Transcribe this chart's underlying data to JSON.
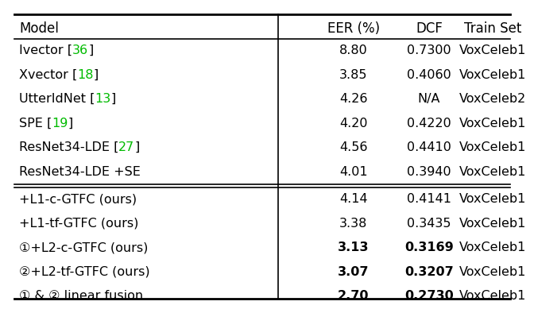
{
  "columns": [
    "Model",
    "EER (%)",
    "DCF",
    "Train Set"
  ],
  "rows_group1": [
    {
      "model_plain": "Ivector [",
      "model_ref": "36",
      "model_suffix": "]",
      "eer": "8.80",
      "dcf": "0.7300",
      "train": "VoxCeleb1",
      "eer_bold": false,
      "dcf_bold": false
    },
    {
      "model_plain": "Xvector [",
      "model_ref": "18",
      "model_suffix": "]",
      "eer": "3.85",
      "dcf": "0.4060",
      "train": "VoxCeleb1",
      "eer_bold": false,
      "dcf_bold": false
    },
    {
      "model_plain": "UtterIdNet [",
      "model_ref": "13",
      "model_suffix": "]",
      "eer": "4.26",
      "dcf": "N/A",
      "train": "VoxCeleb2",
      "eer_bold": false,
      "dcf_bold": false
    },
    {
      "model_plain": "SPE [",
      "model_ref": "19",
      "model_suffix": "]",
      "eer": "4.20",
      "dcf": "0.4220",
      "train": "VoxCeleb1",
      "eer_bold": false,
      "dcf_bold": false
    },
    {
      "model_plain": "ResNet34-LDE [",
      "model_ref": "27",
      "model_suffix": "]",
      "eer": "4.56",
      "dcf": "0.4410",
      "train": "VoxCeleb1",
      "eer_bold": false,
      "dcf_bold": false
    },
    {
      "model_plain": "ResNet34-LDE +SE",
      "model_ref": "",
      "model_suffix": "",
      "eer": "4.01",
      "dcf": "0.3940",
      "train": "VoxCeleb1",
      "eer_bold": false,
      "dcf_bold": false
    }
  ],
  "rows_group2": [
    {
      "model_plain": "+L1-c-GTFC (ours)",
      "model_ref": "",
      "model_suffix": "",
      "eer": "4.14",
      "dcf": "0.4141",
      "train": "VoxCeleb1",
      "eer_bold": false,
      "dcf_bold": false
    },
    {
      "model_plain": "+L1-tf-GTFC (ours)",
      "model_ref": "",
      "model_suffix": "",
      "eer": "3.38",
      "dcf": "0.3435",
      "train": "VoxCeleb1",
      "eer_bold": false,
      "dcf_bold": false
    },
    {
      "model_plain": "①+L2-c-GTFC (ours)",
      "model_ref": "",
      "model_suffix": "",
      "eer": "3.13",
      "dcf": "0.3169",
      "train": "VoxCeleb1",
      "eer_bold": true,
      "dcf_bold": true
    },
    {
      "model_plain": "②+L2-tf-GTFC (ours)",
      "model_ref": "",
      "model_suffix": "",
      "eer": "3.07",
      "dcf": "0.3207",
      "train": "VoxCeleb1",
      "eer_bold": true,
      "dcf_bold": true
    },
    {
      "model_plain": "① & ② linear fusion",
      "model_ref": "",
      "model_suffix": "",
      "eer": "2.70",
      "dcf": "0.2730",
      "train": "VoxCeleb1",
      "eer_bold": true,
      "dcf_bold": true
    }
  ],
  "ref_color": "#00bb00",
  "font_size": 11.5,
  "header_font_size": 12.0,
  "bg_color": "#ffffff"
}
